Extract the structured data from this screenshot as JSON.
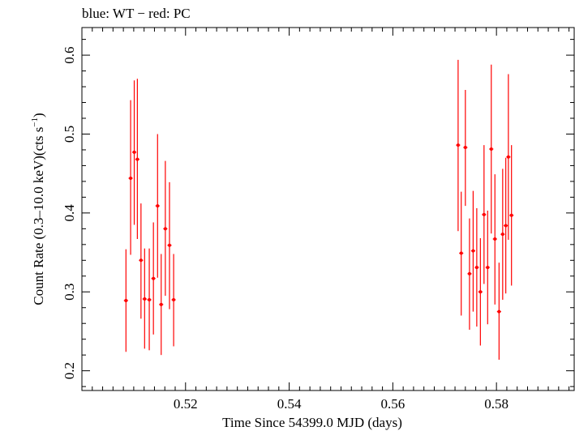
{
  "chart_data": {
    "type": "scatter",
    "title": "blue: WT − red: PC",
    "xlabel": "Time Since 54399.0 MJD (days)",
    "ylabel_main": "Count Rate (0.3–10.0 keV)(cts s",
    "ylabel_sup": "−1",
    "ylabel_close": ")",
    "xlim": [
      0.5,
      0.595
    ],
    "ylim": [
      0.175,
      0.635
    ],
    "xticks": [
      0.52,
      0.54,
      0.56,
      0.58
    ],
    "xtick_labels": [
      "0.52",
      "0.54",
      "0.56",
      "0.58"
    ],
    "xminor_step": 0.002,
    "yticks": [
      0.2,
      0.3,
      0.4,
      0.5,
      0.6
    ],
    "ytick_labels": [
      "0.2",
      "0.3",
      "0.4",
      "0.5",
      "0.6"
    ],
    "yminor_step": 0.02,
    "grid": false,
    "series": [
      {
        "color": "#ff0000",
        "xerr": 0.0004,
        "points": [
          {
            "x": 0.5085,
            "y": 0.289,
            "lo": 0.224,
            "hi": 0.354
          },
          {
            "x": 0.5094,
            "y": 0.444,
            "lo": 0.347,
            "hi": 0.543
          },
          {
            "x": 0.5101,
            "y": 0.477,
            "lo": 0.385,
            "hi": 0.568
          },
          {
            "x": 0.5107,
            "y": 0.468,
            "lo": 0.367,
            "hi": 0.57
          },
          {
            "x": 0.5114,
            "y": 0.34,
            "lo": 0.266,
            "hi": 0.412
          },
          {
            "x": 0.5121,
            "y": 0.291,
            "lo": 0.228,
            "hi": 0.355
          },
          {
            "x": 0.513,
            "y": 0.29,
            "lo": 0.226,
            "hi": 0.355
          },
          {
            "x": 0.5138,
            "y": 0.317,
            "lo": 0.246,
            "hi": 0.388
          },
          {
            "x": 0.5146,
            "y": 0.409,
            "lo": 0.318,
            "hi": 0.5
          },
          {
            "x": 0.5153,
            "y": 0.284,
            "lo": 0.22,
            "hi": 0.348
          },
          {
            "x": 0.5161,
            "y": 0.38,
            "lo": 0.295,
            "hi": 0.466
          },
          {
            "x": 0.5169,
            "y": 0.359,
            "lo": 0.278,
            "hi": 0.439
          },
          {
            "x": 0.5177,
            "y": 0.29,
            "lo": 0.231,
            "hi": 0.348
          },
          {
            "x": 0.5726,
            "y": 0.486,
            "lo": 0.377,
            "hi": 0.594
          },
          {
            "x": 0.5732,
            "y": 0.349,
            "lo": 0.27,
            "hi": 0.427
          },
          {
            "x": 0.574,
            "y": 0.483,
            "lo": 0.409,
            "hi": 0.556
          },
          {
            "x": 0.5748,
            "y": 0.323,
            "lo": 0.252,
            "hi": 0.393
          },
          {
            "x": 0.5755,
            "y": 0.352,
            "lo": 0.275,
            "hi": 0.428
          },
          {
            "x": 0.5762,
            "y": 0.331,
            "lo": 0.256,
            "hi": 0.406
          },
          {
            "x": 0.5769,
            "y": 0.3,
            "lo": 0.232,
            "hi": 0.368
          },
          {
            "x": 0.5776,
            "y": 0.398,
            "lo": 0.31,
            "hi": 0.486
          },
          {
            "x": 0.5783,
            "y": 0.331,
            "lo": 0.259,
            "hi": 0.403
          },
          {
            "x": 0.579,
            "y": 0.481,
            "lo": 0.374,
            "hi": 0.588
          },
          {
            "x": 0.5797,
            "y": 0.367,
            "lo": 0.284,
            "hi": 0.449
          },
          {
            "x": 0.5805,
            "y": 0.275,
            "lo": 0.214,
            "hi": 0.337
          },
          {
            "x": 0.5812,
            "y": 0.373,
            "lo": 0.29,
            "hi": 0.456
          },
          {
            "x": 0.5818,
            "y": 0.384,
            "lo": 0.298,
            "hi": 0.47
          },
          {
            "x": 0.5823,
            "y": 0.471,
            "lo": 0.366,
            "hi": 0.576
          },
          {
            "x": 0.5829,
            "y": 0.397,
            "lo": 0.308,
            "hi": 0.486
          }
        ]
      }
    ]
  }
}
